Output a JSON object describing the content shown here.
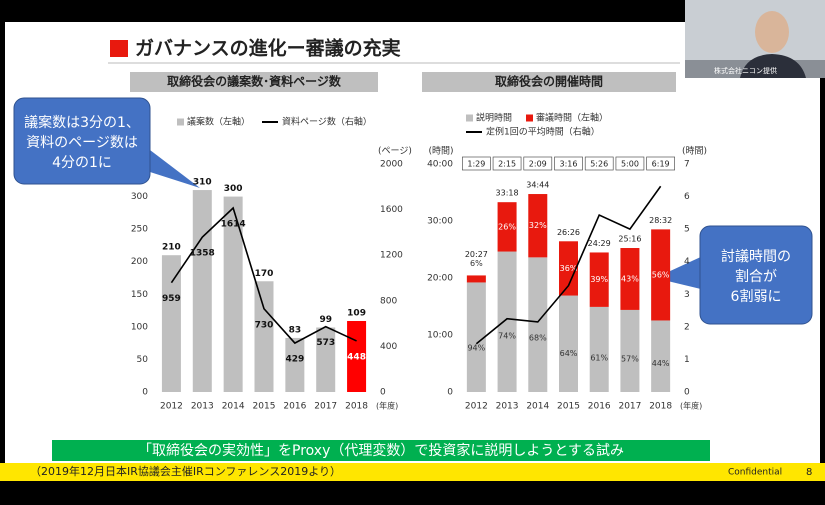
{
  "slide": {
    "title": "ガバナンスの進化ー審議の充実",
    "callouts": [
      {
        "lines": [
          "議案数は3分の1、",
          "資料のページ数は",
          "4分の1に"
        ]
      },
      {
        "lines": [
          "討議時間の",
          "割合が",
          "6割弱に"
        ]
      }
    ],
    "banner": "「取締役会の実効性」をProxy（代理変数）で投資家に説明しようとする試み",
    "footer": "（2019年12月日本IR協議会主催IRコンファレンス2019より）",
    "confidential": "Confidential",
    "page": "8",
    "webcam_label": "株式会社ニコン提供"
  },
  "chart_data": [
    {
      "type": "bar",
      "title": "取締役会の議案数･資料ページ数",
      "categories": [
        "2012",
        "2013",
        "2014",
        "2015",
        "2016",
        "2017",
        "2018"
      ],
      "series": [
        {
          "name": "議案数（左軸）",
          "color": "#bfbfbf",
          "colors": [
            "#bfbfbf",
            "#bfbfbf",
            "#bfbfbf",
            "#bfbfbf",
            "#bfbfbf",
            "#bfbfbf",
            "#ff0000"
          ],
          "values": [
            210,
            310,
            300,
            170,
            83,
            99,
            109
          ]
        },
        {
          "name": "資料ページ数（右軸）",
          "type": "line",
          "axis": "y2",
          "color": "#000000",
          "values": [
            959,
            1358,
            1614,
            730,
            429,
            573,
            448
          ]
        }
      ],
      "ylim": [
        0,
        350
      ],
      "yticks": [
        0,
        50,
        100,
        150,
        200,
        250,
        300
      ],
      "y2lim": [
        0,
        2000
      ],
      "y2ticks": [
        0,
        400,
        800,
        1200,
        1600,
        2000
      ],
      "y2_label": "(ページ)",
      "x_label": "(年度)"
    },
    {
      "type": "bar",
      "stacked": true,
      "title": "取締役会の開催時間",
      "categories": [
        "2012",
        "2013",
        "2014",
        "2015",
        "2016",
        "2017",
        "2018"
      ],
      "series": [
        {
          "name": "説明時間",
          "color": "#bfbfbf",
          "values": [
            19.22,
            24.64,
            23.62,
            16.92,
            14.93,
            14.4,
            12.55
          ],
          "share_labels": [
            "94%",
            "74%",
            "68%",
            "64%",
            "61%",
            "57%",
            "44%"
          ]
        },
        {
          "name": "審議時間（左軸）",
          "color": "#e8190e",
          "values": [
            1.23,
            8.66,
            11.11,
            9.52,
            9.55,
            10.86,
            15.98
          ],
          "share_labels": [
            "6%",
            "26%",
            "32%",
            "36%",
            "39%",
            "43%",
            "56%"
          ]
        },
        {
          "name": "定例1回の平均時間（右軸）",
          "type": "line",
          "axis": "y2",
          "color": "#000000",
          "values": [
            1.483,
            2.25,
            2.15,
            3.267,
            5.433,
            5.0,
            6.317
          ],
          "value_labels": [
            "1:29",
            "2:15",
            "2:09",
            "3:16",
            "5:26",
            "5:00",
            "6:19"
          ]
        }
      ],
      "total_labels": [
        "20:27",
        "33:18",
        "34:44",
        "26:26",
        "24:29",
        "25:16",
        "28:32"
      ],
      "ylim": [
        0,
        40
      ],
      "yticks": [
        0,
        {
          "value": 10,
          "label": "10:00"
        },
        {
          "value": 20,
          "label": "20:00"
        },
        {
          "value": 30,
          "label": "30:00"
        },
        {
          "value": 40,
          "label": "40:00"
        }
      ],
      "y2lim": [
        0,
        7
      ],
      "y2ticks": [
        0,
        1,
        2,
        3,
        4,
        5,
        6,
        7
      ],
      "y_label": "(時間)",
      "y2_label": "(時間)",
      "x_label": "(年度)"
    }
  ]
}
